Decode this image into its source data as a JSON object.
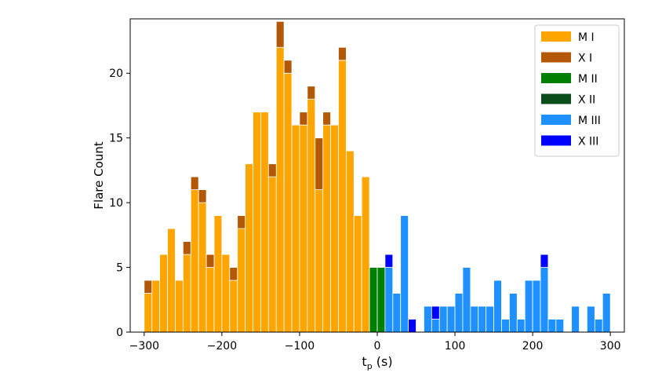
{
  "chart_data": {
    "type": "bar",
    "stacked": true,
    "xlabel_main": "t",
    "xlabel_sub": "p",
    "xlabel_unit": " (s)",
    "ylabel": "Flare Count",
    "xlim": [
      -318,
      318
    ],
    "ylim": [
      0,
      24.2
    ],
    "xticks": [
      -300,
      -200,
      -100,
      0,
      100,
      200,
      300
    ],
    "xtick_labels": [
      "−300",
      "−200",
      "−100",
      "0",
      "100",
      "200",
      "300"
    ],
    "yticks": [
      0,
      5,
      10,
      15,
      20
    ],
    "ytick_labels": [
      "0",
      "5",
      "10",
      "15",
      "20"
    ],
    "bin_width": 10,
    "legend_position": "top-right",
    "grid": false,
    "series": [
      {
        "name": "M I",
        "color": "#FFA500",
        "bins": [
          {
            "x": -300,
            "value": 3
          },
          {
            "x": -290,
            "value": 4
          },
          {
            "x": -280,
            "value": 6
          },
          {
            "x": -270,
            "value": 8
          },
          {
            "x": -260,
            "value": 4
          },
          {
            "x": -250,
            "value": 6
          },
          {
            "x": -240,
            "value": 11
          },
          {
            "x": -230,
            "value": 10
          },
          {
            "x": -220,
            "value": 5
          },
          {
            "x": -210,
            "value": 9
          },
          {
            "x": -200,
            "value": 6
          },
          {
            "x": -190,
            "value": 4
          },
          {
            "x": -180,
            "value": 8
          },
          {
            "x": -170,
            "value": 13
          },
          {
            "x": -160,
            "value": 17
          },
          {
            "x": -150,
            "value": 17
          },
          {
            "x": -140,
            "value": 12
          },
          {
            "x": -130,
            "value": 22
          },
          {
            "x": -120,
            "value": 20
          },
          {
            "x": -110,
            "value": 16
          },
          {
            "x": -100,
            "value": 16
          },
          {
            "x": -90,
            "value": 18
          },
          {
            "x": -80,
            "value": 11
          },
          {
            "x": -70,
            "value": 16
          },
          {
            "x": -60,
            "value": 16
          },
          {
            "x": -50,
            "value": 21
          },
          {
            "x": -40,
            "value": 14
          },
          {
            "x": -30,
            "value": 9
          },
          {
            "x": -20,
            "value": 12
          }
        ]
      },
      {
        "name": "X I",
        "color": "#B35806",
        "bins": [
          {
            "x": -300,
            "value": 1
          },
          {
            "x": -250,
            "value": 1
          },
          {
            "x": -240,
            "value": 1
          },
          {
            "x": -230,
            "value": 1
          },
          {
            "x": -220,
            "value": 1
          },
          {
            "x": -190,
            "value": 1
          },
          {
            "x": -180,
            "value": 1
          },
          {
            "x": -140,
            "value": 1
          },
          {
            "x": -130,
            "value": 2
          },
          {
            "x": -120,
            "value": 1
          },
          {
            "x": -100,
            "value": 1
          },
          {
            "x": -90,
            "value": 1
          },
          {
            "x": -80,
            "value": 4
          },
          {
            "x": -70,
            "value": 1
          },
          {
            "x": -50,
            "value": 1
          }
        ]
      },
      {
        "name": "M II",
        "color": "#008000",
        "bins": [
          {
            "x": -10,
            "value": 5
          },
          {
            "x": 0,
            "value": 5
          }
        ]
      },
      {
        "name": "X II",
        "color": "#0B4D1A",
        "bins": []
      },
      {
        "name": "M III",
        "color": "#1E90FF",
        "bins": [
          {
            "x": 10,
            "value": 5
          },
          {
            "x": 20,
            "value": 3
          },
          {
            "x": 30,
            "value": 9
          },
          {
            "x": 60,
            "value": 2
          },
          {
            "x": 70,
            "value": 1
          },
          {
            "x": 80,
            "value": 2
          },
          {
            "x": 90,
            "value": 2
          },
          {
            "x": 100,
            "value": 3
          },
          {
            "x": 110,
            "value": 5
          },
          {
            "x": 120,
            "value": 2
          },
          {
            "x": 130,
            "value": 2
          },
          {
            "x": 140,
            "value": 2
          },
          {
            "x": 150,
            "value": 4
          },
          {
            "x": 160,
            "value": 1
          },
          {
            "x": 170,
            "value": 3
          },
          {
            "x": 180,
            "value": 1
          },
          {
            "x": 190,
            "value": 4
          },
          {
            "x": 200,
            "value": 4
          },
          {
            "x": 210,
            "value": 5
          },
          {
            "x": 220,
            "value": 1
          },
          {
            "x": 230,
            "value": 1
          },
          {
            "x": 250,
            "value": 2
          },
          {
            "x": 270,
            "value": 2
          },
          {
            "x": 280,
            "value": 1
          },
          {
            "x": 290,
            "value": 3
          }
        ]
      },
      {
        "name": "X III",
        "color": "#0000FF",
        "bins": [
          {
            "x": 10,
            "value": 1
          },
          {
            "x": 40,
            "value": 1
          },
          {
            "x": 70,
            "value": 1
          },
          {
            "x": 210,
            "value": 1
          }
        ]
      }
    ]
  }
}
